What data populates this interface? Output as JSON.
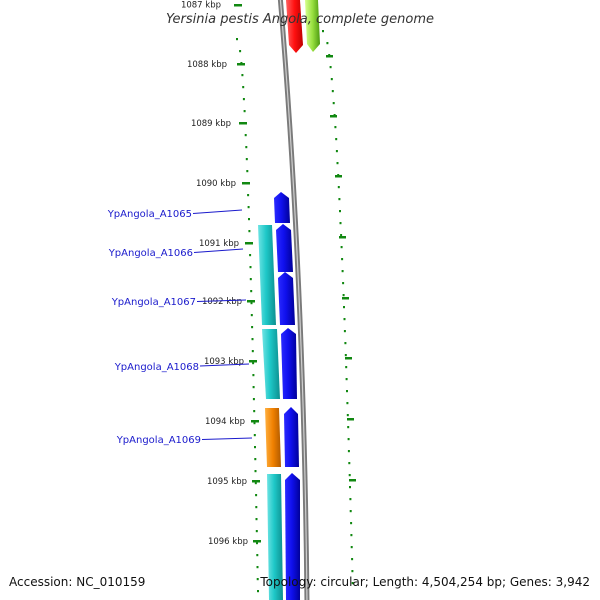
{
  "title": "Yersinia pestis Angola, complete genome",
  "ticks": [
    "1087 kbp",
    "1088 kbp",
    "1089 kbp",
    "1090 kbp",
    "1091 kbp",
    "1092 kbp",
    "1093 kbp",
    "1094 kbp",
    "1095 kbp",
    "1096 kbp"
  ],
  "gene_labels": [
    "YpAngola_A1065",
    "YpAngola_A1066",
    "YpAngola_A1067",
    "YpAngola_A1068",
    "YpAngola_A1069"
  ],
  "footer": {
    "accession": "Accession: NC_010159",
    "summary": "Topology: circular; Length: 4,504,254 bp; Genes: 3,942"
  },
  "colors": {
    "forward_gene": "#0000dd",
    "reverse_gene": "#19c8c8",
    "orange_gene": "#f08000",
    "red_gene": "#ff1a1a",
    "green_gene": "#90dd30",
    "backbone": "#888888",
    "tick_mark": "#118811",
    "label_line": "#1a1acc"
  }
}
